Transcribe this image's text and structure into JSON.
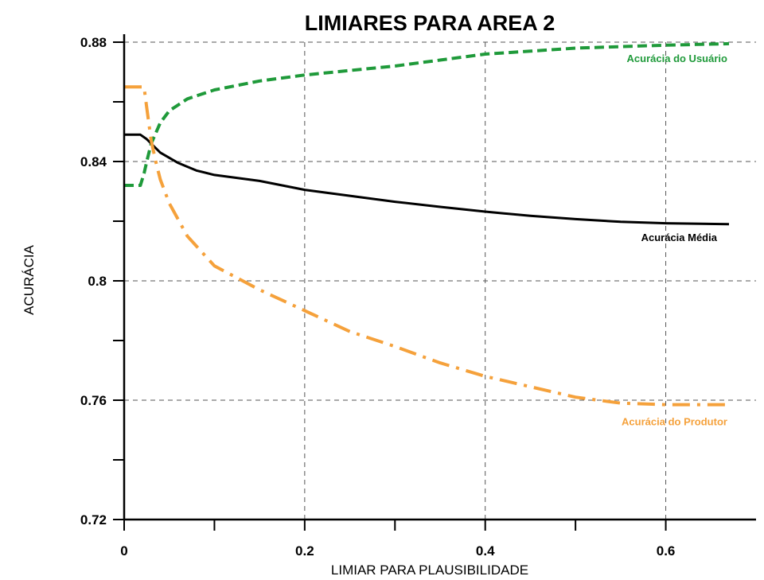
{
  "chart_data": {
    "type": "line",
    "title": "LIMIARES PARA AREA 2",
    "xlabel": "LIMIAR PARA PLAUSIBILIDADE",
    "ylabel": "ACURÁCIA",
    "xlim": [
      0,
      0.7
    ],
    "ylim": [
      0.72,
      0.88
    ],
    "x_major_ticks": [
      0,
      0.2,
      0.4,
      0.6
    ],
    "x_tick_labels": [
      "0",
      "0.2",
      "0.4",
      "0.6"
    ],
    "y_major_ticks": [
      0.72,
      0.76,
      0.8,
      0.84,
      0.88
    ],
    "y_tick_labels": [
      "0.72",
      "0.76",
      "0.8",
      "0.84",
      "0.88"
    ],
    "grid": true,
    "series": [
      {
        "name": "Acurácia do Usuário",
        "color": "#1f9a3a",
        "dash": "dashed",
        "x": [
          0,
          0.018,
          0.022,
          0.025,
          0.03,
          0.04,
          0.05,
          0.07,
          0.1,
          0.15,
          0.2,
          0.25,
          0.3,
          0.35,
          0.4,
          0.45,
          0.5,
          0.55,
          0.6,
          0.67
        ],
        "y": [
          0.832,
          0.832,
          0.836,
          0.84,
          0.846,
          0.853,
          0.857,
          0.861,
          0.864,
          0.867,
          0.869,
          0.8705,
          0.872,
          0.874,
          0.876,
          0.877,
          0.878,
          0.8785,
          0.879,
          0.8795
        ]
      },
      {
        "name": "Acurácia Média",
        "color": "#000000",
        "dash": "solid",
        "x": [
          0,
          0.018,
          0.025,
          0.03,
          0.04,
          0.06,
          0.08,
          0.1,
          0.15,
          0.2,
          0.25,
          0.3,
          0.35,
          0.4,
          0.45,
          0.5,
          0.55,
          0.6,
          0.67
        ],
        "y": [
          0.849,
          0.849,
          0.8475,
          0.846,
          0.843,
          0.8395,
          0.837,
          0.8355,
          0.8335,
          0.8305,
          0.8285,
          0.8265,
          0.8248,
          0.8232,
          0.8218,
          0.8207,
          0.8198,
          0.8193,
          0.819
        ]
      },
      {
        "name": "Acurácia do Produtor",
        "color": "#f5a13b",
        "dash": "dashdot",
        "x": [
          0,
          0.022,
          0.025,
          0.03,
          0.035,
          0.04,
          0.05,
          0.07,
          0.1,
          0.15,
          0.2,
          0.25,
          0.3,
          0.35,
          0.4,
          0.45,
          0.5,
          0.55,
          0.6,
          0.67
        ],
        "y": [
          0.865,
          0.865,
          0.858,
          0.847,
          0.84,
          0.834,
          0.826,
          0.815,
          0.805,
          0.797,
          0.79,
          0.783,
          0.778,
          0.7725,
          0.768,
          0.7645,
          0.761,
          0.759,
          0.7585,
          0.7585
        ]
      }
    ],
    "annotations": [
      {
        "text": "Acurácia do Usuário",
        "series": 0
      },
      {
        "text": "Acurácia Média",
        "series": 1
      },
      {
        "text": "Acurácia do Produtor",
        "series": 2
      }
    ]
  }
}
